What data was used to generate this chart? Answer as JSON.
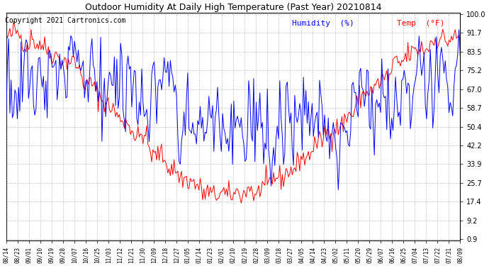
{
  "title": "Outdoor Humidity At Daily High Temperature (Past Year) 20210814",
  "copyright": "Copyright 2021 Cartronics.com",
  "legend_humidity": "Humidity  (%)",
  "legend_temp": "Temp  (°F)",
  "humidity_color": "#0000ff",
  "temp_color": "#ff0000",
  "background_color": "#ffffff",
  "grid_color": "#888888",
  "yticks": [
    0.9,
    9.2,
    17.4,
    25.7,
    33.9,
    42.2,
    50.4,
    58.7,
    67.0,
    75.2,
    83.5,
    91.7,
    100.0
  ],
  "xtick_labels": [
    "08/14",
    "08/23",
    "09/01",
    "09/10",
    "09/19",
    "09/28",
    "10/07",
    "10/16",
    "10/25",
    "11/03",
    "11/12",
    "11/21",
    "11/30",
    "12/09",
    "12/18",
    "12/27",
    "01/05",
    "01/14",
    "01/23",
    "02/01",
    "02/10",
    "02/19",
    "02/28",
    "03/09",
    "03/18",
    "03/27",
    "04/05",
    "04/14",
    "04/23",
    "05/02",
    "05/11",
    "05/20",
    "05/29",
    "06/07",
    "06/16",
    "06/25",
    "07/04",
    "07/13",
    "07/22",
    "07/31",
    "08/09"
  ],
  "n_labels": 41,
  "figsize": [
    6.9,
    3.75
  ],
  "dpi": 100,
  "ymin": 0.9,
  "ymax": 100.0,
  "title_fontsize": 9,
  "copyright_fontsize": 7,
  "legend_fontsize": 8,
  "xtick_fontsize": 5.5,
  "ytick_fontsize": 7
}
